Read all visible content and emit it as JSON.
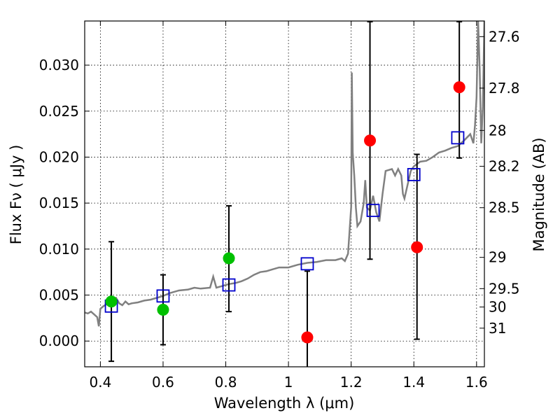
{
  "chart_data": {
    "type": "scatter",
    "xlabel": "Wavelength  λ (μm)",
    "ylabel": "Flux  Fν  ( μJy )",
    "ylabel_right": "Magnitude (AB)",
    "xlim": [
      0.35,
      1.625
    ],
    "ylim": [
      -0.0028,
      0.0348
    ],
    "grid": true,
    "x_ticks": [
      0.4,
      0.6,
      0.8,
      1.0,
      1.2,
      1.4,
      1.6
    ],
    "x_tick_labels": [
      "0.4",
      "0.6",
      "0.8",
      "1",
      "1.2",
      "1.4",
      "1.6"
    ],
    "y_ticks": [
      0.0,
      0.005,
      0.01,
      0.015,
      0.02,
      0.025,
      0.03
    ],
    "y_tick_labels": [
      "0.000",
      "0.005",
      "0.010",
      "0.015",
      "0.020",
      "0.025",
      "0.030"
    ],
    "right_ticks": [
      {
        "label": "27.6",
        "flux": 0.0331
      },
      {
        "label": "27.8",
        "flux": 0.0275
      },
      {
        "label": "28",
        "flux": 0.0229
      },
      {
        "label": "28.2",
        "flux": 0.019
      },
      {
        "label": "28.5",
        "flux": 0.0145
      },
      {
        "label": "29",
        "flux": 0.0091
      },
      {
        "label": "29.5",
        "flux": 0.0057
      },
      {
        "label": "30",
        "flux": 0.0037
      },
      {
        "label": "31",
        "flux": 0.0014
      }
    ],
    "series": [
      {
        "kind": "line",
        "color": "#808080",
        "points": [
          [
            0.35,
            0.0031
          ],
          [
            0.36,
            0.003
          ],
          [
            0.37,
            0.0032
          ],
          [
            0.38,
            0.0029
          ],
          [
            0.39,
            0.0026
          ],
          [
            0.395,
            0.0016
          ],
          [
            0.4,
            0.0035
          ],
          [
            0.41,
            0.0038
          ],
          [
            0.42,
            0.004
          ],
          [
            0.43,
            0.0043
          ],
          [
            0.44,
            0.0045
          ],
          [
            0.45,
            0.0047
          ],
          [
            0.46,
            0.0041
          ],
          [
            0.47,
            0.0039
          ],
          [
            0.48,
            0.0043
          ],
          [
            0.49,
            0.004
          ],
          [
            0.5,
            0.0041
          ],
          [
            0.52,
            0.0042
          ],
          [
            0.54,
            0.0044
          ],
          [
            0.56,
            0.0045
          ],
          [
            0.58,
            0.0047
          ],
          [
            0.6,
            0.0049
          ],
          [
            0.62,
            0.0052
          ],
          [
            0.65,
            0.0055
          ],
          [
            0.68,
            0.0056
          ],
          [
            0.7,
            0.0058
          ],
          [
            0.72,
            0.0057
          ],
          [
            0.75,
            0.0058
          ],
          [
            0.76,
            0.007
          ],
          [
            0.77,
            0.0058
          ],
          [
            0.79,
            0.006
          ],
          [
            0.81,
            0.0062
          ],
          [
            0.83,
            0.0063
          ],
          [
            0.85,
            0.0065
          ],
          [
            0.87,
            0.0068
          ],
          [
            0.89,
            0.0072
          ],
          [
            0.91,
            0.0075
          ],
          [
            0.93,
            0.0076
          ],
          [
            0.95,
            0.0078
          ],
          [
            0.97,
            0.008
          ],
          [
            1.0,
            0.008
          ],
          [
            1.03,
            0.0083
          ],
          [
            1.06,
            0.0085
          ],
          [
            1.09,
            0.0086
          ],
          [
            1.12,
            0.0088
          ],
          [
            1.15,
            0.0088
          ],
          [
            1.17,
            0.009
          ],
          [
            1.18,
            0.0087
          ],
          [
            1.19,
            0.0095
          ],
          [
            1.2,
            0.0146
          ],
          [
            1.202,
            0.0292
          ],
          [
            1.205,
            0.0205
          ],
          [
            1.21,
            0.018
          ],
          [
            1.215,
            0.0145
          ],
          [
            1.22,
            0.0125
          ],
          [
            1.23,
            0.013
          ],
          [
            1.24,
            0.015
          ],
          [
            1.245,
            0.0175
          ],
          [
            1.25,
            0.0145
          ],
          [
            1.26,
            0.0142
          ],
          [
            1.265,
            0.015
          ],
          [
            1.27,
            0.0158
          ],
          [
            1.28,
            0.014
          ],
          [
            1.29,
            0.013
          ],
          [
            1.3,
            0.016
          ],
          [
            1.31,
            0.0185
          ],
          [
            1.33,
            0.0187
          ],
          [
            1.34,
            0.018
          ],
          [
            1.35,
            0.0187
          ],
          [
            1.36,
            0.018
          ],
          [
            1.365,
            0.016
          ],
          [
            1.37,
            0.0155
          ],
          [
            1.38,
            0.017
          ],
          [
            1.39,
            0.0185
          ],
          [
            1.4,
            0.019
          ],
          [
            1.42,
            0.0195
          ],
          [
            1.44,
            0.0196
          ],
          [
            1.46,
            0.02
          ],
          [
            1.48,
            0.0205
          ],
          [
            1.5,
            0.0207
          ],
          [
            1.52,
            0.021
          ],
          [
            1.54,
            0.0212
          ],
          [
            1.56,
            0.0218
          ],
          [
            1.58,
            0.0225
          ],
          [
            1.59,
            0.0215
          ],
          [
            1.595,
            0.0235
          ],
          [
            1.6,
            0.0265
          ],
          [
            1.605,
            0.0348
          ],
          [
            1.61,
            0.0295
          ],
          [
            1.615,
            0.0215
          ],
          [
            1.62,
            0.0255
          ],
          [
            1.625,
            0.0348
          ]
        ]
      },
      {
        "kind": "squares",
        "color": "#0000cc",
        "points": [
          [
            0.435,
            0.0038
          ],
          [
            0.6,
            0.0049
          ],
          [
            0.81,
            0.0061
          ],
          [
            1.06,
            0.0084
          ],
          [
            1.27,
            0.0142
          ],
          [
            1.4,
            0.0181
          ],
          [
            1.54,
            0.0221
          ]
        ]
      },
      {
        "kind": "circles",
        "color": "#00c000",
        "points": [
          [
            0.435,
            0.0043
          ],
          [
            0.6,
            0.0034
          ],
          [
            0.81,
            0.009
          ]
        ]
      },
      {
        "kind": "circles",
        "color": "#ff0000",
        "points": [
          [
            1.06,
            0.0004
          ],
          [
            1.26,
            0.0218
          ],
          [
            1.41,
            0.0102
          ],
          [
            1.545,
            0.0276
          ]
        ]
      }
    ],
    "error_bars": [
      {
        "x": 0.435,
        "low": -0.0022,
        "high": 0.0108
      },
      {
        "x": 0.6,
        "low": -0.0004,
        "high": 0.0072
      },
      {
        "x": 0.81,
        "low": 0.0032,
        "high": 0.0147
      },
      {
        "x": 1.06,
        "low": -0.0028,
        "high": 0.0076
      },
      {
        "x": 1.26,
        "low": 0.0089,
        "high": 0.0348
      },
      {
        "x": 1.41,
        "low": 0.0002,
        "high": 0.0203
      },
      {
        "x": 1.545,
        "low": 0.0199,
        "high": 0.0348
      }
    ]
  }
}
